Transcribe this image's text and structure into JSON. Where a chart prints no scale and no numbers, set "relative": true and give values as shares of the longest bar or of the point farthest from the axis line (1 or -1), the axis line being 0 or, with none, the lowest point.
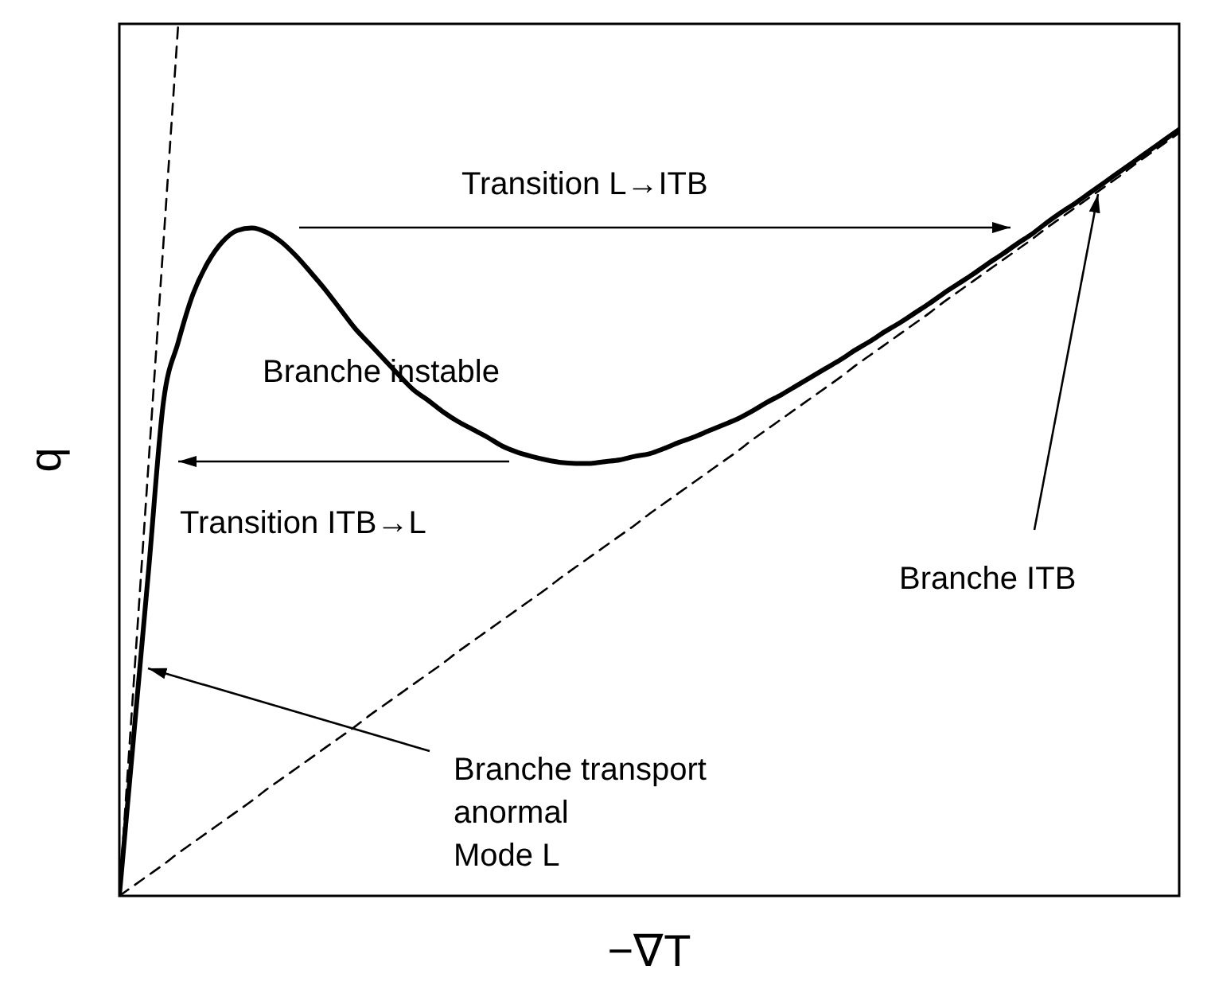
{
  "chart_data": {
    "type": "line",
    "relative": true,
    "xlabel": "−∇T",
    "ylabel": "q",
    "categories": [
      null,
      null,
      null,
      null,
      null,
      null,
      null,
      null,
      null,
      null,
      null,
      null,
      null,
      null,
      null,
      null,
      null,
      null,
      null,
      null,
      null,
      null,
      null,
      null,
      null,
      null,
      null,
      null,
      null,
      null,
      null,
      null,
      null,
      null,
      null,
      null,
      null,
      null,
      null,
      null,
      null,
      null,
      null,
      null,
      null,
      null,
      null,
      null,
      null,
      null,
      null,
      null,
      null,
      null,
      null,
      null,
      null,
      null,
      null,
      null,
      null,
      null,
      null,
      null,
      null,
      null,
      null,
      null,
      null,
      null,
      null,
      null,
      null
    ],
    "series": [
      {
        "color": "#000000",
        "line_style": "solid",
        "values": [
          0,
          0.188,
          0.376,
          0.567,
          0.635,
          0.69,
          0.726,
          0.75,
          0.763,
          0.766,
          0.761,
          0.75,
          0.734,
          0.715,
          0.695,
          0.673,
          0.651,
          0.633,
          0.615,
          0.597,
          0.58,
          0.568,
          0.555,
          0.544,
          0.535,
          0.526,
          0.516,
          0.509,
          0.504,
          0.5,
          0.497,
          0.496,
          0.496,
          0.498,
          0.5,
          0.504,
          0.507,
          0.513,
          0.52,
          0.526,
          0.533,
          0.54,
          0.547,
          0.556,
          0.566,
          0.575,
          0.585,
          0.595,
          0.605,
          0.615,
          0.626,
          0.636,
          0.647,
          0.657,
          0.668,
          0.679,
          0.691,
          0.702,
          0.713,
          0.725,
          0.736,
          0.748,
          0.759,
          0.772,
          0.784,
          0.795,
          0.807,
          0.819,
          0.831,
          0.843,
          0.855,
          0.867,
          0.879
        ]
      },
      {
        "color": "#000000",
        "line_style": "dashed",
        "values": [
          0,
          0.25,
          0.5,
          0.75,
          1,
          null,
          null,
          null,
          null,
          null,
          null,
          null,
          null,
          null,
          null,
          null,
          null,
          null,
          null,
          null,
          null,
          null,
          null,
          null,
          null,
          null,
          null,
          null,
          null,
          null,
          null,
          null,
          null,
          null,
          null,
          null,
          null,
          null,
          null,
          null,
          null,
          null,
          null,
          null,
          null,
          null,
          null,
          null,
          null,
          null,
          null,
          null,
          null,
          null,
          null,
          null,
          null,
          null,
          null,
          null,
          null,
          null,
          null,
          null,
          null,
          null,
          null,
          null,
          null,
          null,
          null,
          null,
          null
        ]
      },
      {
        "color": "#000000",
        "line_style": "dashed",
        "values": [
          0,
          0.012,
          0.024,
          0.036,
          0.049,
          0.061,
          0.073,
          0.085,
          0.097,
          0.109,
          0.122,
          0.134,
          0.146,
          0.158,
          0.17,
          0.182,
          0.194,
          0.207,
          0.219,
          0.231,
          0.243,
          0.255,
          0.267,
          0.28,
          0.292,
          0.304,
          0.316,
          0.328,
          0.34,
          0.352,
          0.365,
          0.377,
          0.389,
          0.401,
          0.413,
          0.425,
          0.438,
          0.45,
          0.462,
          0.474,
          0.486,
          0.498,
          0.51,
          0.523,
          0.535,
          0.547,
          0.559,
          0.571,
          0.583,
          0.595,
          0.608,
          0.62,
          0.632,
          0.644,
          0.656,
          0.668,
          0.681,
          0.693,
          0.705,
          0.717,
          0.729,
          0.741,
          0.753,
          0.766,
          0.778,
          0.79,
          0.802,
          0.814,
          0.826,
          0.839,
          0.851,
          0.863,
          0.875
        ]
      }
    ],
    "annotations": [
      "Transition L→ITB",
      "Branche instable",
      "Transition ITB→L",
      "Branche ITB",
      "Branche transport\nanormal\nMode L"
    ]
  }
}
